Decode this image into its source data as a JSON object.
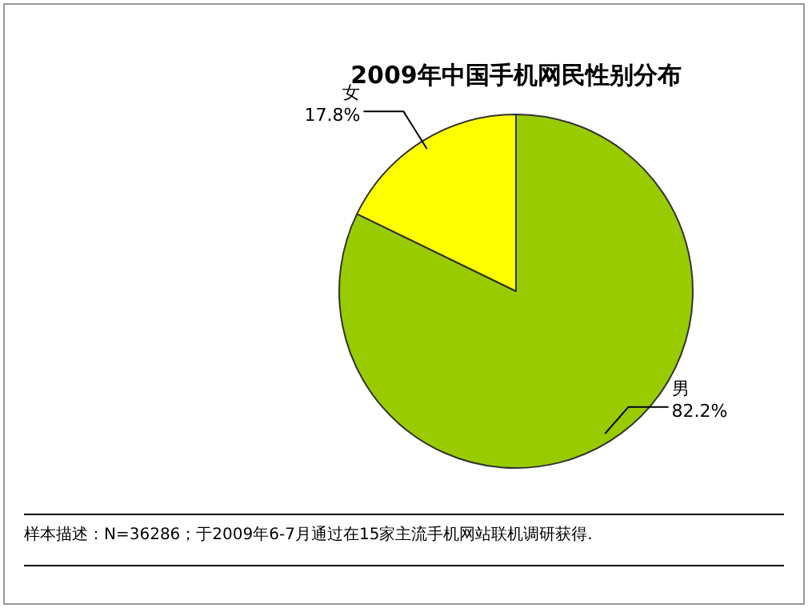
{
  "chart_data": {
    "type": "pie",
    "title": "2009年中国手机网民性别分布",
    "categories": [
      "男",
      "女"
    ],
    "values": [
      82.2,
      17.8
    ],
    "colors": [
      "#99cc00",
      "#ffff00"
    ],
    "value_labels": [
      "82.2%",
      "17.8%"
    ],
    "legend": false,
    "annotations": [
      "样本描述：N=36286；于2009年6-7月通过在15家主流手机网站联机调研获得."
    ]
  }
}
